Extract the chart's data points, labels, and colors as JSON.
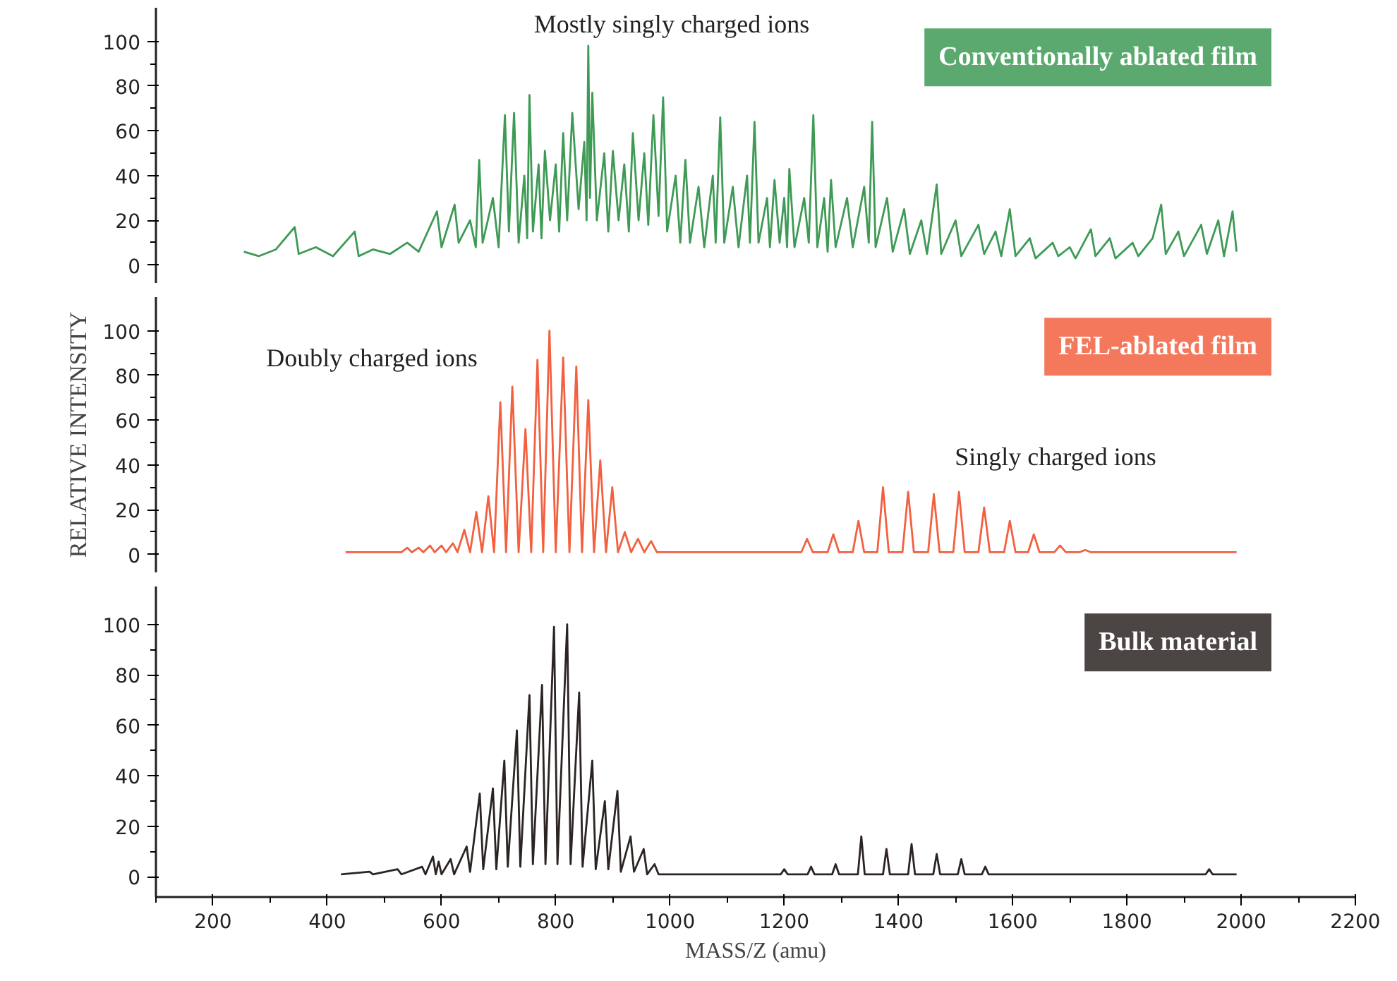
{
  "chart_data": [
    {
      "type": "line",
      "x": [
        254,
        280,
        310,
        343,
        350,
        380,
        410,
        448,
        455,
        480,
        510,
        540,
        560,
        592,
        600,
        623,
        630,
        650,
        660,
        666,
        672,
        690,
        700,
        711,
        718,
        727,
        735,
        745,
        750,
        754,
        760,
        770,
        775,
        781,
        790,
        800,
        806,
        813,
        820,
        829,
        840,
        850,
        854,
        857,
        860,
        864,
        872,
        885,
        892,
        900,
        910,
        920,
        928,
        935,
        945,
        955,
        962,
        971,
        980,
        988,
        995,
        1010,
        1018,
        1027,
        1035,
        1050,
        1060,
        1075,
        1080,
        1088,
        1095,
        1110,
        1120,
        1135,
        1140,
        1148,
        1155,
        1170,
        1175,
        1183,
        1192,
        1200,
        1205,
        1209,
        1218,
        1235,
        1243,
        1251,
        1258,
        1270,
        1276,
        1282,
        1290,
        1310,
        1320,
        1340,
        1348,
        1354,
        1360,
        1380,
        1390,
        1410,
        1420,
        1440,
        1450,
        1467,
        1475,
        1500,
        1510,
        1540,
        1550,
        1570,
        1580,
        1595,
        1605,
        1630,
        1640,
        1670,
        1680,
        1700,
        1710,
        1737,
        1745,
        1770,
        1780,
        1810,
        1820,
        1845,
        1860,
        1868,
        1890,
        1900,
        1930,
        1940,
        1960,
        1970,
        1985,
        1992
      ],
      "series": [
        {
          "name": "Conventionally ablated film",
          "color": "#3e9a55",
          "values": [
            6,
            4,
            7,
            17,
            5,
            8,
            4,
            15,
            4,
            7,
            5,
            10,
            6,
            24,
            8,
            27,
            10,
            20,
            8,
            47,
            10,
            30,
            8,
            67,
            15,
            68,
            10,
            40,
            12,
            76,
            15,
            45,
            12,
            51,
            20,
            45,
            15,
            59,
            20,
            68,
            25,
            55,
            20,
            98,
            30,
            77,
            20,
            50,
            15,
            51,
            20,
            45,
            15,
            59,
            20,
            50,
            18,
            67,
            22,
            75,
            15,
            40,
            10,
            47,
            10,
            35,
            8,
            40,
            10,
            66,
            10,
            35,
            8,
            40,
            10,
            64,
            10,
            30,
            8,
            38,
            10,
            30,
            8,
            43,
            8,
            30,
            10,
            67,
            8,
            30,
            6,
            38,
            8,
            30,
            8,
            35,
            10,
            64,
            8,
            30,
            6,
            25,
            5,
            20,
            5,
            36,
            5,
            20,
            4,
            18,
            5,
            15,
            4,
            25,
            4,
            12,
            3,
            10,
            4,
            8,
            3,
            16,
            4,
            12,
            3,
            10,
            4,
            12,
            27,
            5,
            15,
            4,
            18,
            5,
            20,
            4,
            24,
            6
          ]
        }
      ],
      "xlim": [
        100,
        2200
      ],
      "ylim": [
        -8,
        115
      ],
      "yticks": [
        0,
        20,
        40,
        60,
        80,
        100
      ],
      "tick_labels": "y",
      "legend": "top right",
      "annotations": [
        "Mostly singly charged ions"
      ]
    },
    {
      "type": "line",
      "x": [
        432,
        530,
        540,
        548,
        560,
        568,
        580,
        588,
        600,
        608,
        620,
        628,
        640,
        650,
        661,
        671,
        682,
        692,
        703,
        713,
        724,
        735,
        747,
        757,
        768,
        778,
        789,
        800,
        813,
        824,
        836,
        846,
        857,
        867,
        878,
        888,
        899,
        909,
        921,
        932,
        944,
        955,
        967,
        977,
        1230,
        1240,
        1250,
        1276,
        1286,
        1296,
        1320,
        1330,
        1340,
        1363,
        1373,
        1383,
        1407,
        1417,
        1427,
        1452,
        1462,
        1472,
        1496,
        1506,
        1516,
        1540,
        1550,
        1560,
        1585,
        1595,
        1605,
        1627,
        1637,
        1647,
        1673,
        1683,
        1693,
        1717,
        1727,
        1737,
        1992
      ],
      "series": [
        {
          "name": "FEL-ablated film",
          "color": "#f2603f",
          "values": [
            1,
            1,
            3,
            1,
            3,
            1,
            4,
            1,
            4,
            1,
            5,
            1,
            11,
            1,
            19,
            1,
            26,
            1,
            68,
            1,
            75,
            1,
            56,
            1,
            87,
            1,
            100,
            1,
            88,
            1,
            84,
            1,
            69,
            1,
            42,
            1,
            30,
            1,
            10,
            1,
            7,
            1,
            6,
            1,
            1,
            7,
            1,
            1,
            9,
            1,
            1,
            15,
            1,
            1,
            30,
            1,
            1,
            28,
            1,
            1,
            27,
            1,
            1,
            28,
            1,
            1,
            21,
            1,
            1,
            15,
            1,
            1,
            9,
            1,
            1,
            4,
            1,
            1,
            2,
            1,
            1
          ]
        }
      ],
      "xlim": [
        100,
        2200
      ],
      "ylim": [
        -8,
        115
      ],
      "yticks": [
        0,
        20,
        40,
        60,
        80,
        100
      ],
      "tick_labels": "y",
      "legend": "top right",
      "ylabel": "RELATIVE INTENSITY",
      "annotations": [
        "Doubly charged ions",
        "Singly charged ions"
      ]
    },
    {
      "type": "line",
      "x": [
        424,
        474,
        480,
        523,
        530,
        566,
        572,
        585,
        590,
        595,
        600,
        616,
        622,
        644,
        650,
        667,
        673,
        690,
        696,
        710,
        716,
        732,
        738,
        754,
        760,
        776,
        782,
        797,
        803,
        820,
        826,
        841,
        847,
        864,
        870,
        886,
        892,
        908,
        914,
        931,
        937,
        954,
        960,
        973,
        980,
        1194,
        1200,
        1206,
        1241,
        1247,
        1253,
        1284,
        1290,
        1296,
        1329,
        1335,
        1341,
        1373,
        1379,
        1385,
        1417,
        1423,
        1429,
        1461,
        1467,
        1473,
        1504,
        1510,
        1516,
        1546,
        1552,
        1558,
        1938,
        1944,
        1950,
        1992
      ],
      "series": [
        {
          "name": "Bulk material",
          "color": "#2b2422",
          "values": [
            1,
            2,
            1,
            3,
            1,
            4,
            1,
            8,
            1,
            6,
            1,
            7,
            1,
            12,
            2,
            33,
            3,
            35,
            3,
            46,
            4,
            58,
            4,
            72,
            5,
            76,
            5,
            99,
            5,
            100,
            5,
            73,
            4,
            46,
            3,
            30,
            3,
            34,
            2,
            16,
            2,
            11,
            1,
            5,
            1,
            1,
            3,
            1,
            1,
            4,
            1,
            1,
            5,
            1,
            1,
            16,
            1,
            1,
            11,
            1,
            1,
            13,
            1,
            1,
            9,
            1,
            1,
            7,
            1,
            1,
            4,
            1,
            1,
            3,
            1,
            1
          ]
        }
      ],
      "xlim": [
        100,
        2200
      ],
      "ylim": [
        -8,
        115
      ],
      "yticks": [
        0,
        20,
        40,
        60,
        80,
        100
      ],
      "xticks": [
        200,
        400,
        600,
        800,
        1000,
        1200,
        1400,
        1600,
        1800,
        2000,
        2200
      ],
      "xlabel": "MASS/Z (amu)",
      "legend": "top right"
    }
  ]
}
